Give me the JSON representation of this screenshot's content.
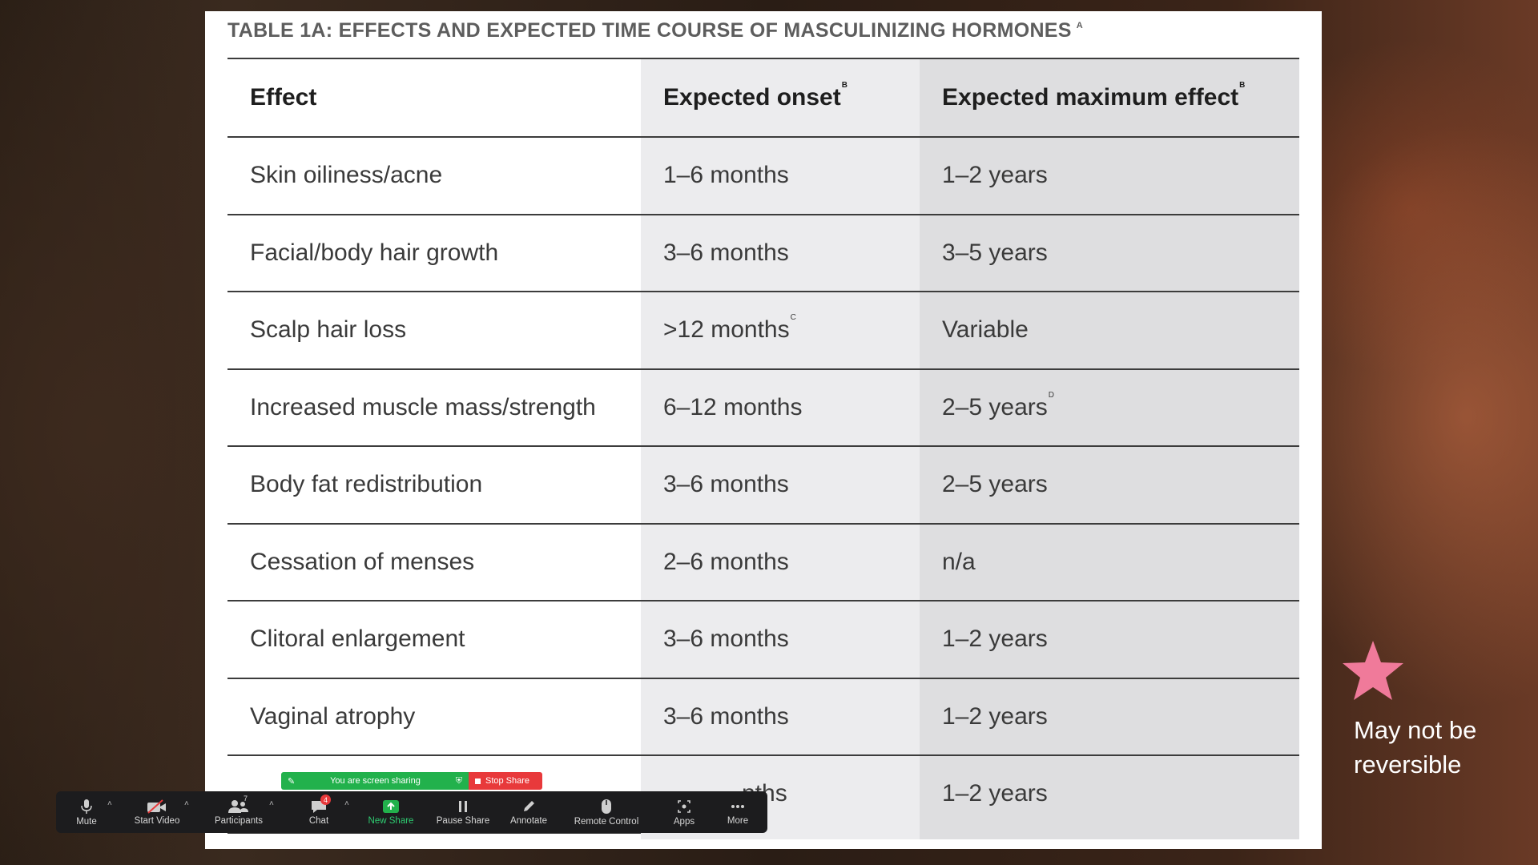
{
  "slide": {
    "title": "TABLE 1A:  EFFECTS AND EXPECTED TIME COURSE OF MASCULINIZING HORMONES",
    "title_sup": "A",
    "columns": [
      {
        "label": "Effect",
        "sup": ""
      },
      {
        "label": "Expected onset",
        "sup": "B"
      },
      {
        "label": "Expected maximum effect",
        "sup": "B"
      }
    ],
    "rows": [
      {
        "effect": "Skin oiliness/acne",
        "onset": "1–6 months",
        "onset_sup": "",
        "max": "1–2 years",
        "max_sup": ""
      },
      {
        "effect": "Facial/body hair growth",
        "onset": "3–6 months",
        "onset_sup": "",
        "max": "3–5 years",
        "max_sup": ""
      },
      {
        "effect": "Scalp hair loss",
        "onset": ">12 months",
        "onset_sup": "C",
        "max": "Variable",
        "max_sup": ""
      },
      {
        "effect": "Increased muscle mass/strength",
        "onset": "6–12 months",
        "onset_sup": "",
        "max": "2–5 years",
        "max_sup": "D"
      },
      {
        "effect": "Body fat redistribution",
        "onset": "3–6 months",
        "onset_sup": "",
        "max": "2–5 years",
        "max_sup": ""
      },
      {
        "effect": "Cessation of menses",
        "onset": "2–6 months",
        "onset_sup": "",
        "max": "n/a",
        "max_sup": ""
      },
      {
        "effect": "Clitoral enlargement",
        "onset": "3–6 months",
        "onset_sup": "",
        "max": "1–2 years",
        "max_sup": ""
      },
      {
        "effect": "Vaginal atrophy",
        "onset": "3–6 months",
        "onset_sup": "",
        "max": "1–2 years",
        "max_sup": ""
      },
      {
        "effect": "",
        "onset": "nths",
        "onset_sup": "",
        "max": "1–2 years",
        "max_sup": ""
      }
    ]
  },
  "annotation": {
    "icon": "star-icon",
    "star_color": "#f07a9a",
    "text": "May not be reversible"
  },
  "share_banner": {
    "status": "You are screen sharing",
    "stop_label": "Stop Share"
  },
  "toolbar": {
    "mute": "Mute",
    "start_video": "Start Video",
    "participants": "Participants",
    "participants_count": "7",
    "chat": "Chat",
    "chat_badge": "4",
    "new_share": "New Share",
    "pause_share": "Pause Share",
    "annotate": "Annotate",
    "remote_control": "Remote Control",
    "apps": "Apps",
    "more": "More"
  },
  "colors": {
    "share_green": "#22b14c",
    "stop_red": "#e8393b",
    "toolbar_bg": "#1c1c1e"
  }
}
